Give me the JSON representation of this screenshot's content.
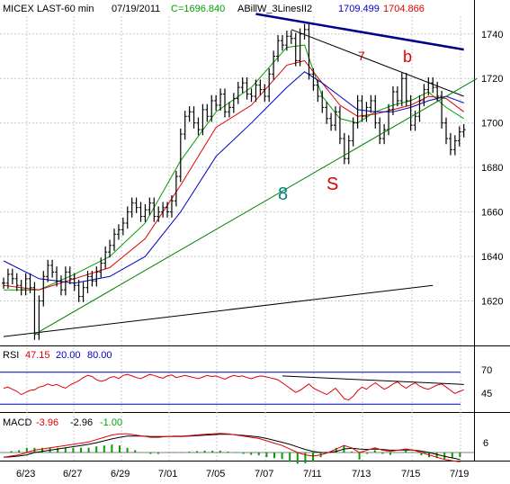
{
  "header": {
    "symbol": "MICEX LAST-60 min",
    "date": "07/19/2011",
    "close_label": "C=1696.840",
    "indicator": "ABillW_3LinesII2",
    "value1": "1709.499",
    "value2": "1704.866"
  },
  "colors": {
    "price_bars": "#000000",
    "ma_fast": "#00a000",
    "ma_mid": "#e00000",
    "ma_slow": "#0000c0",
    "support_line": "#008000",
    "annotation_red": "#e00000",
    "annotation_teal": "#008080",
    "grid": "#c8c8c8"
  },
  "annotations": {
    "wave_7": "7",
    "wave_b": "b",
    "wave_8": "8",
    "wave_s": "S"
  },
  "rsi_panel": {
    "label": "RSI",
    "value": "47.15",
    "level_low": "20.00",
    "level_high": "80.00",
    "tick_70": "70",
    "tick_45": "45"
  },
  "macd_panel": {
    "label": "MACD",
    "macd": "-3.96",
    "signal": "-2.96",
    "hist": "-1.00",
    "tick_6": "6"
  },
  "chart_data": {
    "type": "line",
    "title": "MICEX LAST-60 min",
    "x_tick_labels": [
      "6/23",
      "6/27",
      "6/29",
      "7/01",
      "7/05",
      "7/07",
      "7/11",
      "7/13",
      "7/15",
      "7/19"
    ],
    "y_tick_labels": [
      "1740",
      "1720",
      "1700",
      "1680",
      "1660",
      "1640",
      "1620"
    ],
    "ylim": [
      1600,
      1748
    ],
    "grid": true,
    "series": [
      {
        "name": "LAST",
        "points": [
          [
            0,
            1628
          ],
          [
            1,
            1632
          ],
          [
            2,
            1630
          ],
          [
            3,
            1627
          ],
          [
            4,
            1625
          ],
          [
            5,
            1630
          ],
          [
            6,
            1626
          ],
          [
            7,
            1605
          ],
          [
            8,
            1620
          ],
          [
            9,
            1631
          ],
          [
            10,
            1636
          ],
          [
            11,
            1633
          ],
          [
            12,
            1629
          ],
          [
            13,
            1625
          ],
          [
            14,
            1633
          ],
          [
            15,
            1630
          ],
          [
            16,
            1627
          ],
          [
            17,
            1622
          ],
          [
            18,
            1626
          ],
          [
            19,
            1631
          ],
          [
            20,
            1629
          ],
          [
            21,
            1633
          ],
          [
            22,
            1637
          ],
          [
            23,
            1642
          ],
          [
            24,
            1645
          ],
          [
            25,
            1650
          ],
          [
            26,
            1652
          ],
          [
            27,
            1655
          ],
          [
            28,
            1660
          ],
          [
            29,
            1664
          ],
          [
            30,
            1662
          ],
          [
            31,
            1658
          ],
          [
            32,
            1661
          ],
          [
            33,
            1664
          ],
          [
            34,
            1658
          ],
          [
            35,
            1660
          ],
          [
            36,
            1662
          ],
          [
            37,
            1660
          ],
          [
            38,
            1665
          ],
          [
            39,
            1676
          ],
          [
            40,
            1695
          ],
          [
            41,
            1703
          ],
          [
            42,
            1705
          ],
          [
            43,
            1700
          ],
          [
            44,
            1697
          ],
          [
            45,
            1706
          ],
          [
            46,
            1703
          ],
          [
            47,
            1710
          ],
          [
            48,
            1708
          ],
          [
            49,
            1713
          ],
          [
            50,
            1705
          ],
          [
            51,
            1707
          ],
          [
            52,
            1711
          ],
          [
            53,
            1716
          ],
          [
            54,
            1718
          ],
          [
            55,
            1713
          ],
          [
            56,
            1712
          ],
          [
            57,
            1717
          ],
          [
            58,
            1715
          ],
          [
            59,
            1712
          ],
          [
            60,
            1722
          ],
          [
            61,
            1730
          ],
          [
            62,
            1737
          ],
          [
            63,
            1735
          ],
          [
            64,
            1739
          ],
          [
            65,
            1738
          ],
          [
            66,
            1728
          ],
          [
            67,
            1740
          ],
          [
            68,
            1742
          ],
          [
            69,
            1722
          ],
          [
            70,
            1717
          ],
          [
            71,
            1712
          ],
          [
            72,
            1707
          ],
          [
            73,
            1702
          ],
          [
            74,
            1699
          ],
          [
            75,
            1705
          ],
          [
            76,
            1693
          ],
          [
            77,
            1684
          ],
          [
            78,
            1692
          ],
          [
            79,
            1700
          ],
          [
            80,
            1710
          ],
          [
            81,
            1703
          ],
          [
            82,
            1707
          ],
          [
            83,
            1710
          ],
          [
            84,
            1700
          ],
          [
            85,
            1693
          ],
          [
            86,
            1697
          ],
          [
            87,
            1706
          ],
          [
            88,
            1714
          ],
          [
            89,
            1710
          ],
          [
            90,
            1720
          ],
          [
            91,
            1710
          ],
          [
            92,
            1699
          ],
          [
            93,
            1703
          ],
          [
            94,
            1710
          ],
          [
            95,
            1715
          ],
          [
            96,
            1718
          ],
          [
            97,
            1716
          ],
          [
            98,
            1712
          ],
          [
            99,
            1700
          ],
          [
            100,
            1693
          ],
          [
            101,
            1688
          ],
          [
            102,
            1692
          ],
          [
            103,
            1696
          ],
          [
            104,
            1697
          ]
        ]
      },
      {
        "name": "MA fast",
        "points": [
          [
            0,
            1625
          ],
          [
            8,
            1625
          ],
          [
            16,
            1632
          ],
          [
            24,
            1640
          ],
          [
            32,
            1655
          ],
          [
            40,
            1683
          ],
          [
            48,
            1705
          ],
          [
            56,
            1716
          ],
          [
            64,
            1734
          ],
          [
            68,
            1735
          ],
          [
            72,
            1712
          ],
          [
            76,
            1702
          ],
          [
            80,
            1700
          ],
          [
            84,
            1705
          ],
          [
            88,
            1708
          ],
          [
            92,
            1710
          ],
          [
            96,
            1714
          ],
          [
            100,
            1707
          ],
          [
            104,
            1702
          ]
        ]
      },
      {
        "name": "MA mid",
        "points": [
          [
            0,
            1627
          ],
          [
            8,
            1625
          ],
          [
            16,
            1630
          ],
          [
            24,
            1635
          ],
          [
            32,
            1648
          ],
          [
            40,
            1672
          ],
          [
            48,
            1698
          ],
          [
            56,
            1708
          ],
          [
            64,
            1726
          ],
          [
            68,
            1728
          ],
          [
            72,
            1718
          ],
          [
            76,
            1708
          ],
          [
            80,
            1703
          ],
          [
            84,
            1704
          ],
          [
            88,
            1706
          ],
          [
            92,
            1708
          ],
          [
            96,
            1712
          ],
          [
            100,
            1711
          ],
          [
            104,
            1705
          ]
        ]
      },
      {
        "name": "MA slow",
        "points": [
          [
            0,
            1638
          ],
          [
            8,
            1630
          ],
          [
            16,
            1628
          ],
          [
            24,
            1631
          ],
          [
            32,
            1640
          ],
          [
            40,
            1660
          ],
          [
            48,
            1685
          ],
          [
            56,
            1700
          ],
          [
            64,
            1716
          ],
          [
            68,
            1723
          ],
          [
            72,
            1718
          ],
          [
            76,
            1712
          ],
          [
            80,
            1706
          ],
          [
            84,
            1705
          ],
          [
            88,
            1705
          ],
          [
            92,
            1707
          ],
          [
            96,
            1710
          ],
          [
            100,
            1712
          ],
          [
            104,
            1709
          ]
        ]
      }
    ],
    "trend_lines": [
      {
        "name": "resistance-upper",
        "from": [
          57,
          1749
        ],
        "to": [
          104,
          1733
        ]
      },
      {
        "name": "resistance-wave7",
        "from": [
          65,
          1742
        ],
        "to": [
          104,
          1712
        ]
      },
      {
        "name": "support-wave8",
        "from": [
          7,
          1605
        ],
        "to": [
          107,
          1720
        ]
      },
      {
        "name": "lower-channel",
        "from": [
          0,
          1604
        ],
        "to": [
          97,
          1627
        ]
      }
    ],
    "rsi": {
      "ylim": [
        0,
        100
      ],
      "levels": [
        20,
        80
      ],
      "values": [
        50,
        52,
        48,
        44,
        38,
        42,
        46,
        47,
        52,
        54,
        58,
        55,
        57,
        53,
        50,
        56,
        60,
        64,
        70,
        74,
        72,
        66,
        63,
        65,
        70,
        72,
        68,
        74,
        76,
        73,
        70,
        68,
        72,
        76,
        74,
        71,
        69,
        73,
        75,
        70,
        72,
        74,
        72,
        70,
        68,
        71,
        74,
        72,
        73,
        70,
        67,
        71,
        74,
        72,
        73,
        70,
        68,
        71,
        73,
        72,
        70,
        68,
        66,
        60,
        54,
        48,
        42,
        46,
        52,
        58,
        50,
        46,
        42,
        38,
        44,
        50,
        40,
        30,
        28,
        35,
        45,
        52,
        48,
        55,
        60,
        54,
        48,
        52,
        58,
        62,
        55,
        50,
        56,
        60,
        54,
        50,
        48,
        52,
        56,
        58,
        52,
        46,
        40,
        44,
        47
      ]
    },
    "macd": {
      "macd": "-3.96",
      "signal": "-2.96",
      "hist": "-1.00",
      "macd_values": [
        -2,
        -1.5,
        -1,
        0,
        1,
        1.5,
        2,
        2.5,
        3,
        3.5,
        4,
        4.5,
        5.5,
        6.5,
        7.5,
        8,
        8,
        7.5,
        7,
        6.5,
        6.5,
        6.8,
        7,
        7,
        7.2,
        7.5,
        7.8,
        8,
        8.2,
        8,
        7.5,
        7,
        6.5,
        6,
        5,
        4,
        3,
        1.5,
        0,
        -1,
        -1.5,
        -1,
        0,
        1.5,
        3,
        2,
        0,
        1,
        2,
        1,
        0.5,
        1,
        1.5,
        1,
        0,
        -1,
        -2,
        -3,
        -3.5,
        -4
      ],
      "signal_values": [
        -2,
        -1.8,
        -1.5,
        -1,
        0,
        0.5,
        1,
        1.5,
        2,
        2.5,
        3,
        3.5,
        4.2,
        5,
        5.8,
        6.5,
        7,
        7,
        7,
        6.8,
        6.8,
        6.8,
        6.9,
        6.9,
        7,
        7.2,
        7.4,
        7.6,
        7.8,
        7.8,
        7.6,
        7.3,
        7,
        6.6,
        6,
        5.2,
        4.4,
        3.5,
        2.4,
        1.3,
        0.5,
        0,
        0,
        0.5,
        1.5,
        1.8,
        1.5,
        1.3,
        1.5,
        1.3,
        1,
        1,
        1.1,
        1,
        0.6,
        0,
        -0.8,
        -1.6,
        -2.3,
        -3
      ]
    }
  }
}
